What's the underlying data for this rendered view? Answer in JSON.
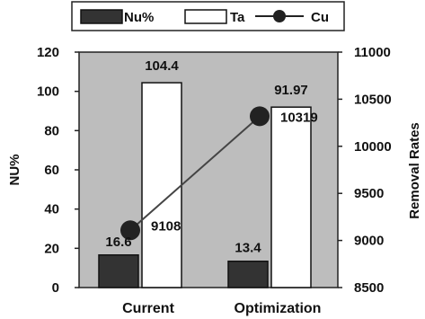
{
  "chart_data": {
    "type": "bar",
    "categories": [
      "Current",
      "Optimization"
    ],
    "ylabel": "NU%",
    "y2label": "Removal Rates",
    "ylim": [
      0,
      120
    ],
    "y2lim": [
      8500,
      11000
    ],
    "yticks": [
      "0",
      "20",
      "40",
      "60",
      "80",
      "100",
      "120"
    ],
    "y2ticks": [
      "8500",
      "9000",
      "9500",
      "10000",
      "10500",
      "11000"
    ],
    "grid": false,
    "legend_position": "top",
    "series": [
      {
        "name": "Nu%",
        "kind": "bar",
        "axis": "left",
        "values": [
          16.6,
          13.4
        ],
        "labels": [
          "16.6",
          "13.4"
        ],
        "color": "#333333"
      },
      {
        "name": "Ta",
        "kind": "bar",
        "axis": "left",
        "values": [
          104.4,
          91.97
        ],
        "labels": [
          "104.4",
          "91.97"
        ],
        "color": "#ffffff"
      },
      {
        "name": "Cu",
        "kind": "line",
        "axis": "right",
        "values": [
          9108,
          10319
        ],
        "labels": [
          "9108",
          "10319"
        ],
        "color": "#222222"
      }
    ],
    "plot_background": "#bdbdbd"
  }
}
